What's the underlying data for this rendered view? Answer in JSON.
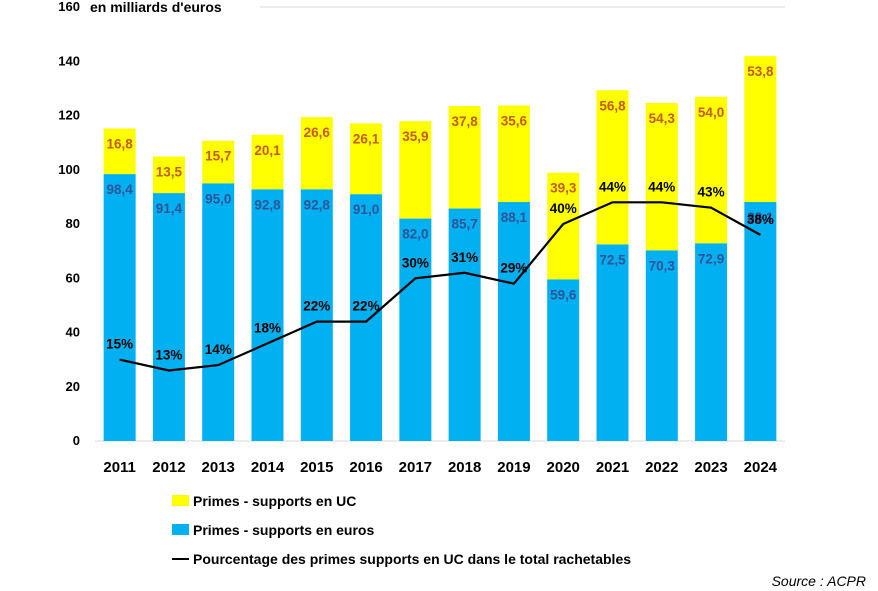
{
  "chart_data": {
    "type": "bar",
    "stacked": true,
    "ylabel": "en milliards d'euros",
    "ylim": [
      0,
      160
    ],
    "yticks": [
      0,
      20,
      40,
      60,
      80,
      100,
      120,
      140,
      160
    ],
    "categories": [
      "2011",
      "2012",
      "2013",
      "2014",
      "2015",
      "2016",
      "2017",
      "2018",
      "2019",
      "2020",
      "2021",
      "2022",
      "2023",
      "2024"
    ],
    "series": [
      {
        "name": "Primes - supports en euros",
        "color": "#00B0F0",
        "label_color": "#2E5597",
        "values": [
          98.4,
          91.4,
          95.0,
          92.8,
          92.8,
          91.0,
          82.0,
          85.7,
          88.1,
          59.6,
          72.5,
          70.3,
          72.9,
          88.1
        ],
        "labels": [
          "98,4",
          "91,4",
          "95,0",
          "92,8",
          "92,8",
          "91,0",
          "82,0",
          "85,7",
          "88,1",
          "59,6",
          "72,5",
          "70,3",
          "72,9",
          "88,1"
        ]
      },
      {
        "name": "Primes - supports en UC",
        "color": "#FFFF00",
        "label_color": "#C55A11",
        "values": [
          16.8,
          13.5,
          15.7,
          20.1,
          26.6,
          26.1,
          35.9,
          37.8,
          35.6,
          39.3,
          56.8,
          54.3,
          54.0,
          53.8
        ],
        "labels": [
          "16,8",
          "13,5",
          "15,7",
          "20,1",
          "26,6",
          "26,1",
          "35,9",
          "37,8",
          "35,6",
          "39,3",
          "56,8",
          "54,3",
          "54,0",
          "53,8"
        ]
      }
    ],
    "line": {
      "name": "Pourcentage des primes supports en UC dans le total rachetables",
      "color": "#000000",
      "values": [
        15,
        13,
        14,
        18,
        22,
        22,
        30,
        31,
        29,
        40,
        44,
        44,
        43,
        38
      ],
      "labels": [
        "15%",
        "13%",
        "14%",
        "18%",
        "22%",
        "22%",
        "30%",
        "31%",
        "29%",
        "40%",
        "44%",
        "44%",
        "43%",
        "38%"
      ]
    },
    "legend_placement": "bottom",
    "grid": false
  },
  "legend": {
    "uc": "Primes - supports en UC",
    "euros": "Primes - supports en euros",
    "line": "Pourcentage des primes supports en UC dans le total rachetables"
  },
  "source": "Source : ACPR"
}
